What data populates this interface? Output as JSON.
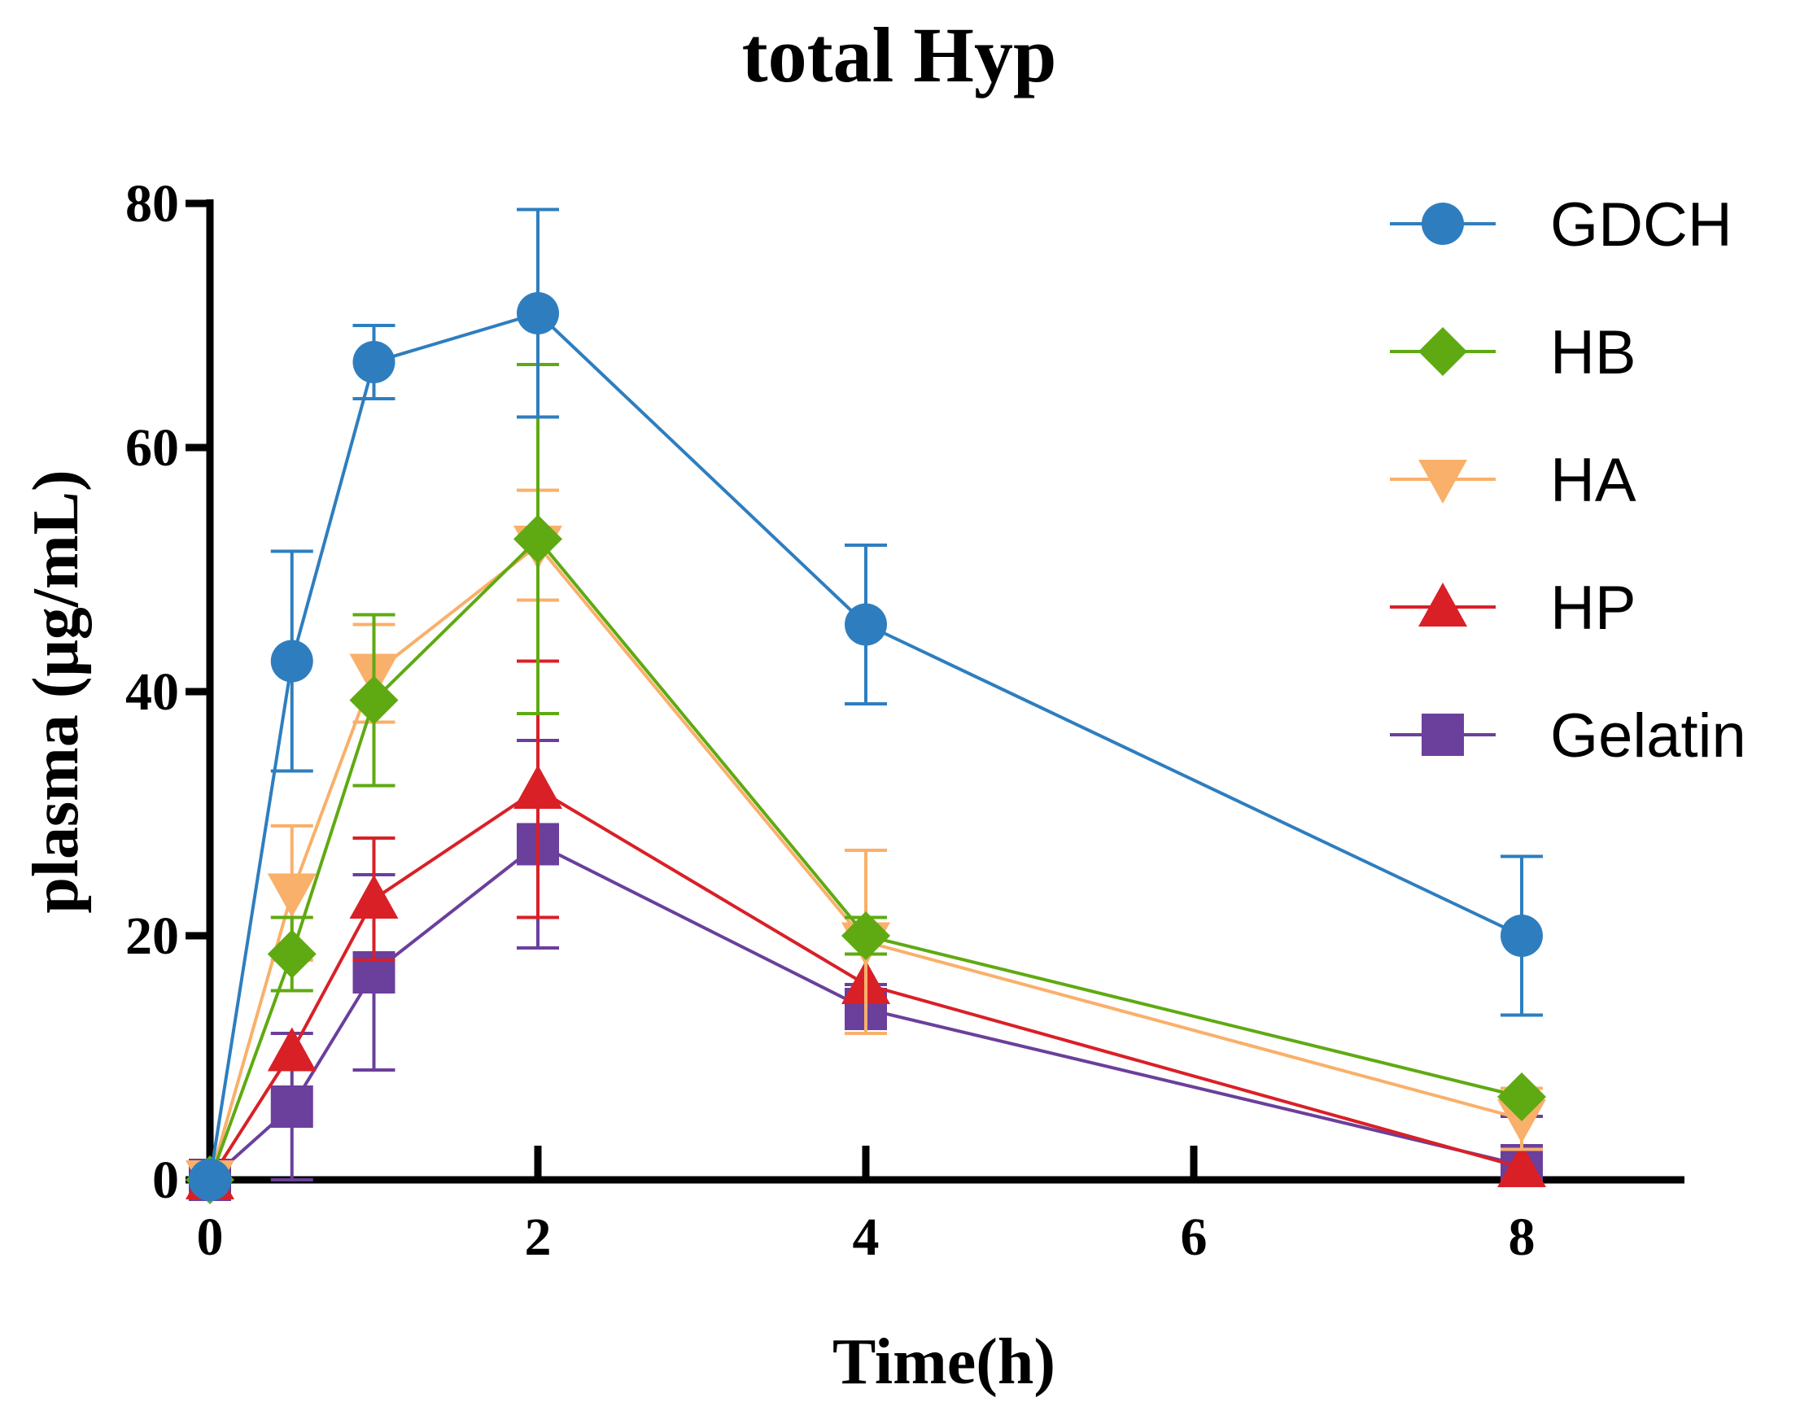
{
  "chart_data": {
    "type": "line",
    "title": "total Hyp",
    "xlabel": "Time(h)",
    "ylabel": "plasma (μg/mL)",
    "xlim": [
      0,
      9
    ],
    "ylim": [
      0,
      80
    ],
    "xticks": [
      0,
      2,
      4,
      6,
      8
    ],
    "yticks": [
      0,
      20,
      40,
      60,
      80
    ],
    "x": [
      0,
      0.5,
      1,
      2,
      4,
      8
    ],
    "legend_position": "top-right",
    "series": [
      {
        "name": "GDCH",
        "color": "#2E7EBF",
        "marker": "circle",
        "values": [
          0,
          42.5,
          67,
          71,
          45.5,
          20
        ],
        "errors": [
          0,
          9,
          3,
          8.5,
          6.5,
          6.5
        ]
      },
      {
        "name": "HB",
        "color": "#5FAA12",
        "marker": "diamond",
        "values": [
          0,
          18.5,
          39.3,
          52.5,
          20,
          6.8
        ],
        "errors": [
          0,
          3,
          7,
          14.3,
          1.5,
          0
        ]
      },
      {
        "name": "HA",
        "color": "#F9B06A",
        "marker": "triangle-down",
        "values": [
          0,
          23.5,
          41.5,
          52,
          19.5,
          5
        ],
        "errors": [
          0,
          5.5,
          4,
          4.5,
          7.5,
          2.5
        ]
      },
      {
        "name": "HP",
        "color": "#D92027",
        "marker": "triangle-up",
        "values": [
          0,
          10.5,
          23,
          32,
          16,
          1
        ],
        "errors": [
          0,
          0,
          5,
          10.5,
          0,
          0
        ]
      },
      {
        "name": "Gelatin",
        "color": "#6B3F9C",
        "marker": "square",
        "values": [
          0,
          6,
          17,
          27.5,
          14,
          1.2
        ],
        "errors": [
          0,
          6,
          8,
          8.5,
          2,
          4
        ]
      }
    ]
  }
}
